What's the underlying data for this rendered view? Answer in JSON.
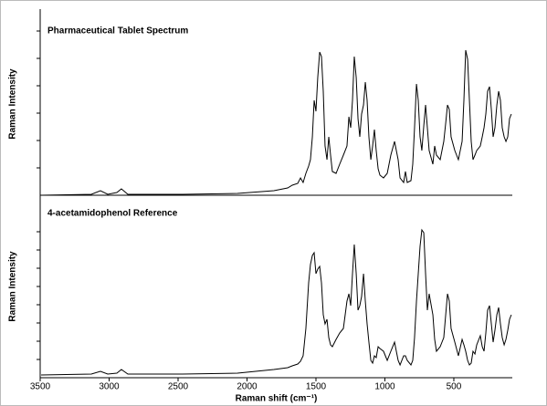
{
  "chart_data": [
    {
      "type": "line",
      "title": "Pharmaceutical Tablet Spectrum",
      "ylabel": "Raman Intensity",
      "color": "#000000",
      "xlim": [
        3500,
        76
      ],
      "ylim": [
        0,
        10
      ],
      "yticks": [
        1.5,
        3,
        4.5,
        6,
        7.5,
        9
      ],
      "x": [
        3493,
        3129,
        3063,
        3010,
        2944,
        2911,
        2864,
        2467,
        2069,
        1805,
        1705,
        1672,
        1632,
        1612,
        1593,
        1573,
        1553,
        1540,
        1526,
        1513,
        1500,
        1487,
        1473,
        1460,
        1447,
        1434,
        1420,
        1407,
        1394,
        1381,
        1354,
        1328,
        1301,
        1275,
        1261,
        1248,
        1235,
        1222,
        1208,
        1195,
        1182,
        1169,
        1155,
        1142,
        1129,
        1116,
        1102,
        1089,
        1076,
        1063,
        1049,
        1036,
        1010,
        983,
        957,
        930,
        917,
        904,
        890,
        864,
        851,
        838,
        811,
        798,
        785,
        771,
        758,
        745,
        732,
        718,
        705,
        692,
        679,
        652,
        639,
        626,
        599,
        573,
        559,
        546,
        533,
        520,
        493,
        467,
        440,
        427,
        414,
        400,
        387,
        374,
        361,
        347,
        334,
        308,
        294,
        281,
        268,
        255,
        241,
        228,
        215,
        202,
        188,
        175,
        162,
        149,
        135,
        122,
        109,
        96,
        83
      ],
      "values": [
        0,
        0.05,
        0.25,
        0.05,
        0.15,
        0.35,
        0.05,
        0.05,
        0.1,
        0.25,
        0.4,
        0.55,
        0.65,
        0.95,
        0.7,
        1.2,
        1.6,
        1.95,
        3.2,
        5.2,
        4.6,
        6.45,
        7.85,
        7.6,
        5.7,
        2.7,
        1.95,
        3.2,
        2.2,
        1.3,
        1.2,
        1.7,
        2.2,
        2.7,
        4.3,
        3.7,
        5.2,
        7.6,
        6.45,
        4.2,
        3.2,
        4.45,
        4.95,
        6.2,
        5.2,
        3.2,
        1.95,
        2.7,
        3.6,
        2.45,
        1.45,
        1.1,
        0.95,
        1.2,
        2.2,
        2.95,
        2.45,
        1.95,
        0.95,
        0.7,
        1.3,
        0.7,
        0.8,
        1.7,
        3.7,
        6.1,
        5.2,
        3.2,
        2.45,
        3.8,
        4.95,
        3.7,
        2.45,
        1.7,
        2.7,
        2.2,
        1.95,
        2.95,
        3.95,
        4.95,
        4.7,
        3.2,
        2.45,
        1.95,
        2.95,
        5.2,
        7.95,
        7.45,
        5.2,
        2.95,
        1.95,
        2.2,
        2.45,
        2.7,
        3.2,
        3.7,
        4.45,
        5.7,
        5.95,
        4.7,
        3.2,
        3.7,
        4.95,
        5.7,
        5.2,
        3.7,
        3.2,
        2.95,
        3.2,
        4.2,
        4.45
      ]
    },
    {
      "type": "line",
      "title": "4-acetamidophenol Reference",
      "ylabel": "Raman Intensity",
      "xlabel": "Raman shift (cm⁻¹)",
      "color": "#000000",
      "xlim": [
        3500,
        76
      ],
      "xticks": [
        3500,
        3000,
        2500,
        2000,
        1500,
        1000,
        500
      ],
      "ylim": [
        0,
        10
      ],
      "yticks": [
        1,
        2,
        3,
        4,
        5,
        6,
        7,
        8
      ],
      "x": [
        3493,
        3129,
        3063,
        3010,
        2944,
        2911,
        2864,
        2467,
        2069,
        1805,
        1705,
        1672,
        1632,
        1612,
        1593,
        1573,
        1553,
        1540,
        1526,
        1513,
        1500,
        1487,
        1473,
        1460,
        1447,
        1434,
        1420,
        1407,
        1394,
        1381,
        1354,
        1328,
        1301,
        1275,
        1261,
        1248,
        1235,
        1222,
        1208,
        1195,
        1182,
        1169,
        1155,
        1142,
        1129,
        1116,
        1102,
        1089,
        1076,
        1063,
        1049,
        1036,
        1010,
        983,
        957,
        930,
        917,
        904,
        890,
        864,
        851,
        838,
        811,
        798,
        785,
        771,
        758,
        745,
        732,
        718,
        705,
        692,
        679,
        652,
        639,
        626,
        599,
        573,
        559,
        546,
        533,
        520,
        493,
        467,
        440,
        427,
        414,
        400,
        387,
        374,
        361,
        347,
        334,
        308,
        294,
        281,
        268,
        255,
        241,
        228,
        215,
        202,
        188,
        175,
        162,
        149,
        135,
        122,
        109,
        96,
        83
      ],
      "values": [
        0.15,
        0.2,
        0.35,
        0.2,
        0.25,
        0.45,
        0.2,
        0.2,
        0.25,
        0.45,
        0.55,
        0.65,
        0.75,
        0.9,
        1.2,
        2.7,
        5.2,
        6.2,
        6.7,
        6.85,
        5.7,
        5.95,
        6.1,
        5.2,
        3.45,
        2.95,
        3.2,
        2.2,
        1.8,
        1.7,
        2.1,
        2.45,
        2.7,
        4.2,
        4.6,
        3.95,
        5.7,
        7.3,
        5.7,
        3.7,
        3.95,
        4.45,
        5.7,
        4.2,
        2.95,
        1.95,
        0.95,
        0.8,
        1.2,
        1.1,
        1.7,
        1.6,
        1.45,
        0.95,
        1.45,
        1.95,
        1.45,
        0.95,
        0.7,
        1.2,
        1.2,
        0.95,
        0.7,
        0.95,
        2.2,
        4.2,
        5.7,
        7.2,
        8.1,
        7.95,
        5.7,
        3.7,
        4.6,
        3.45,
        2.1,
        1.45,
        1.7,
        2.2,
        3.45,
        4.6,
        4.2,
        2.7,
        1.95,
        1.2,
        2.1,
        1.8,
        1.45,
        0.95,
        0.7,
        0.8,
        1.45,
        1.3,
        1.8,
        2.3,
        1.7,
        1.45,
        2.45,
        3.7,
        3.95,
        2.95,
        1.95,
        2.6,
        3.45,
        3.85,
        2.95,
        2.2,
        1.8,
        2.1,
        2.6,
        3.2,
        3.45
      ]
    }
  ]
}
